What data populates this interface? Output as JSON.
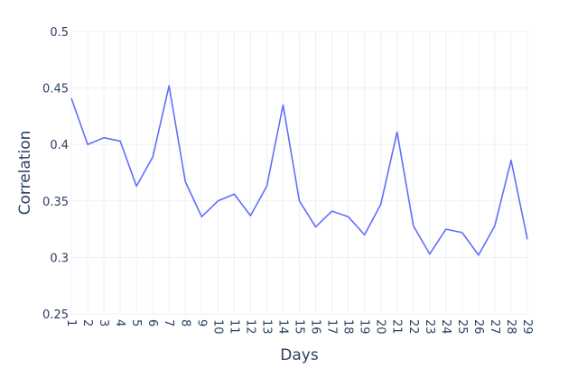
{
  "chart_data": {
    "type": "line",
    "title": "",
    "xlabel": "Days",
    "ylabel": "Correlation",
    "x": [
      1,
      2,
      3,
      4,
      5,
      6,
      7,
      8,
      9,
      10,
      11,
      12,
      13,
      14,
      15,
      16,
      17,
      18,
      19,
      20,
      21,
      22,
      23,
      24,
      25,
      26,
      27,
      28,
      29
    ],
    "series": [
      {
        "values": [
          0.441,
          0.4,
          0.406,
          0.403,
          0.363,
          0.389,
          0.452,
          0.367,
          0.336,
          0.35,
          0.356,
          0.337,
          0.363,
          0.435,
          0.35,
          0.327,
          0.341,
          0.336,
          0.32,
          0.347,
          0.411,
          0.328,
          0.303,
          0.325,
          0.322,
          0.302,
          0.328,
          0.386,
          0.316
        ],
        "color": "#636efa"
      }
    ],
    "xlim": [
      1,
      29
    ],
    "ylim": [
      0.25,
      0.5
    ],
    "yticks": [
      0.25,
      0.3,
      0.35,
      0.4,
      0.45,
      0.5
    ],
    "ytick_labels": [
      "0.25",
      "0.3",
      "0.35",
      "0.4",
      "0.45",
      "0.5"
    ],
    "xticks": [
      1,
      2,
      3,
      4,
      5,
      6,
      7,
      8,
      9,
      10,
      11,
      12,
      13,
      14,
      15,
      16,
      17,
      18,
      19,
      20,
      21,
      22,
      23,
      24,
      25,
      26,
      27,
      28,
      29
    ],
    "xtick_labels": [
      "1",
      "2",
      "3",
      "4",
      "5",
      "6",
      "7",
      "8",
      "9",
      "10",
      "11",
      "12",
      "13",
      "14",
      "15",
      "16",
      "17",
      "18",
      "19",
      "20",
      "21",
      "22",
      "23",
      "24",
      "25",
      "26",
      "27",
      "28",
      "29"
    ],
    "grid": true,
    "legend": "none",
    "gridline_color": "#ebf0f8",
    "text_color": "#2a3f5f"
  }
}
